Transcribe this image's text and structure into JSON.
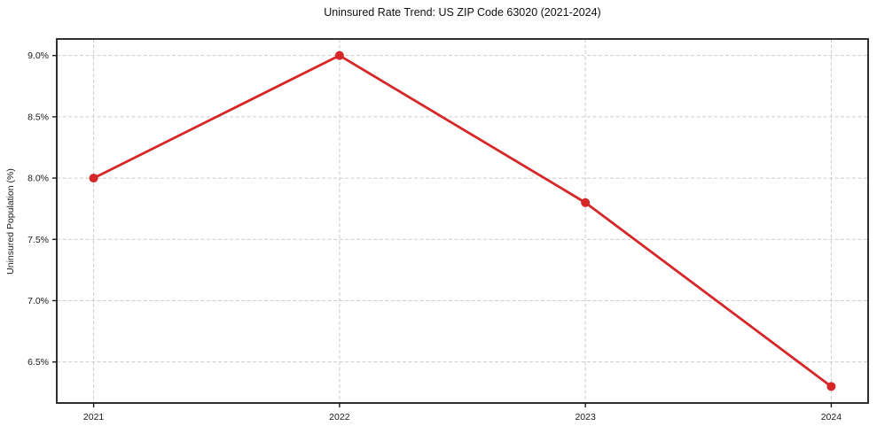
{
  "chart_data": {
    "type": "line",
    "title": "Uninsured Rate Trend: US ZIP Code 63020 (2021-2024)",
    "ylabel": "Uninsured Population (%)",
    "xlabel": "",
    "x": [
      2021,
      2022,
      2023,
      2024
    ],
    "xtick_labels": [
      "2021",
      "2022",
      "2023",
      "2024"
    ],
    "series": [
      {
        "name": "Uninsured Population (%)",
        "values": [
          8.0,
          9.0,
          7.8,
          6.3
        ]
      }
    ],
    "yticks": [
      6.5,
      7.0,
      7.5,
      8.0,
      8.5,
      9.0
    ],
    "ytick_labels": [
      "6.5%",
      "7.0%",
      "7.5%",
      "8.0%",
      "8.5%",
      "9.0%"
    ],
    "ylim": [
      6.165,
      9.135
    ],
    "xlim": [
      2020.85,
      2024.15
    ],
    "grid": true,
    "legend": false,
    "line_color": "#d62728",
    "marker": "circle",
    "grid_color": "#cccccc",
    "axis_color": "#1a1a1a",
    "tick_label_color": "#1a1a1a",
    "background": "#ffffff"
  }
}
